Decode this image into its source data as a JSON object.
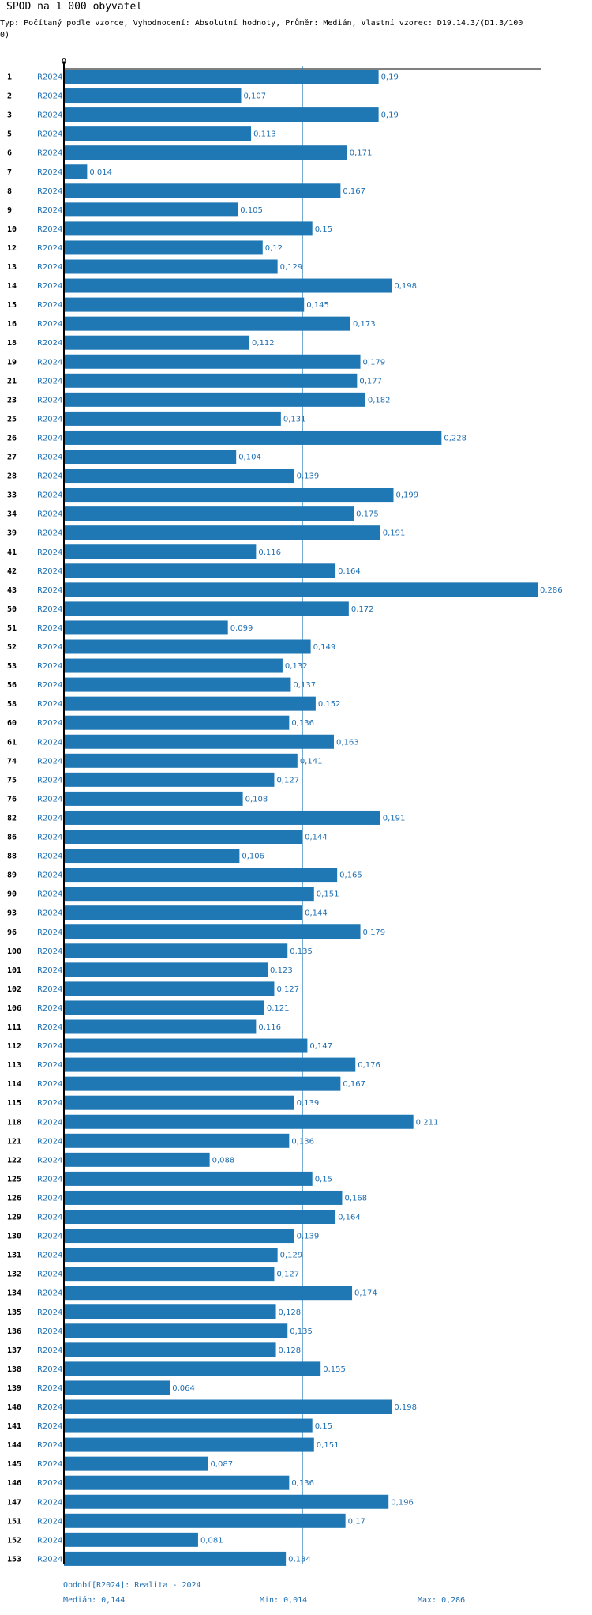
{
  "title": "SPOD na 1 000 obyvatel",
  "subtitle": "Typ: Počítaný podle vzorce, Vyhodnocení: Absolutní hodnoty, Průměr: Medián, Vlastní vzorec: D19.14.3/(D1.3/1000)",
  "colors": {
    "bar": "#1f77b4",
    "axis": "#000000",
    "median_line": "#1f77b4",
    "label": "#1f6fb2",
    "category": "#000000"
  },
  "chart_data": {
    "type": "bar",
    "orientation": "horizontal",
    "title": "SPOD na 1 000 obyvatel",
    "axis_zero_label": "0",
    "series_label": "R2024",
    "median": 0.144,
    "xlim": [
      0,
      0.29
    ],
    "categories": [
      "1",
      "2",
      "3",
      "5",
      "6",
      "7",
      "8",
      "9",
      "10",
      "12",
      "13",
      "14",
      "15",
      "16",
      "18",
      "19",
      "21",
      "23",
      "25",
      "26",
      "27",
      "28",
      "33",
      "34",
      "39",
      "41",
      "42",
      "43",
      "50",
      "51",
      "52",
      "53",
      "56",
      "58",
      "60",
      "61",
      "74",
      "75",
      "76",
      "82",
      "86",
      "88",
      "89",
      "90",
      "93",
      "96",
      "100",
      "101",
      "102",
      "106",
      "111",
      "112",
      "113",
      "114",
      "115",
      "118",
      "121",
      "122",
      "125",
      "126",
      "129",
      "130",
      "131",
      "132",
      "134",
      "135",
      "136",
      "137",
      "138",
      "139",
      "140",
      "141",
      "144",
      "145",
      "146",
      "147",
      "151",
      "152",
      "153"
    ],
    "values": [
      0.19,
      0.107,
      0.19,
      0.113,
      0.171,
      0.014,
      0.167,
      0.105,
      0.15,
      0.12,
      0.129,
      0.198,
      0.145,
      0.173,
      0.112,
      0.179,
      0.177,
      0.182,
      0.131,
      0.228,
      0.104,
      0.139,
      0.199,
      0.175,
      0.191,
      0.116,
      0.164,
      0.286,
      0.172,
      0.099,
      0.149,
      0.132,
      0.137,
      0.152,
      0.136,
      0.163,
      0.141,
      0.127,
      0.108,
      0.191,
      0.144,
      0.106,
      0.165,
      0.151,
      0.144,
      0.179,
      0.135,
      0.123,
      0.127,
      0.121,
      0.116,
      0.147,
      0.176,
      0.167,
      0.139,
      0.211,
      0.136,
      0.088,
      0.15,
      0.168,
      0.164,
      0.139,
      0.129,
      0.127,
      0.174,
      0.128,
      0.135,
      0.128,
      0.155,
      0.064,
      0.198,
      0.15,
      0.151,
      0.087,
      0.136,
      0.196,
      0.17,
      0.081,
      0.134
    ],
    "value_labels": [
      "0,19",
      "0,107",
      "0,19",
      "0,113",
      "0,171",
      "0,014",
      "0,167",
      "0,105",
      "0,15",
      "0,12",
      "0,129",
      "0,198",
      "0,145",
      "0,173",
      "0,112",
      "0,179",
      "0,177",
      "0,182",
      "0,131",
      "0,228",
      "0,104",
      "0,139",
      "0,199",
      "0,175",
      "0,191",
      "0,116",
      "0,164",
      "0,286",
      "0,172",
      "0,099",
      "0,149",
      "0,132",
      "0,137",
      "0,152",
      "0,136",
      "0,163",
      "0,141",
      "0,127",
      "0,108",
      "0,191",
      "0,144",
      "0,106",
      "0,165",
      "0,151",
      "0,144",
      "0,179",
      "0,135",
      "0,123",
      "0,127",
      "0,121",
      "0,116",
      "0,147",
      "0,176",
      "0,167",
      "0,139",
      "0,211",
      "0,136",
      "0,088",
      "0,15",
      "0,168",
      "0,164",
      "0,139",
      "0,129",
      "0,127",
      "0,174",
      "0,128",
      "0,135",
      "0,128",
      "0,155",
      "0,064",
      "0,198",
      "0,15",
      "0,151",
      "0,087",
      "0,136",
      "0,196",
      "0,17",
      "0,081",
      "0,134"
    ]
  },
  "footer": {
    "period": "Období[R2024]: Realita - 2024",
    "median": "Medián: 0,144",
    "min": "Min: 0,014",
    "max": "Max: 0,286"
  }
}
